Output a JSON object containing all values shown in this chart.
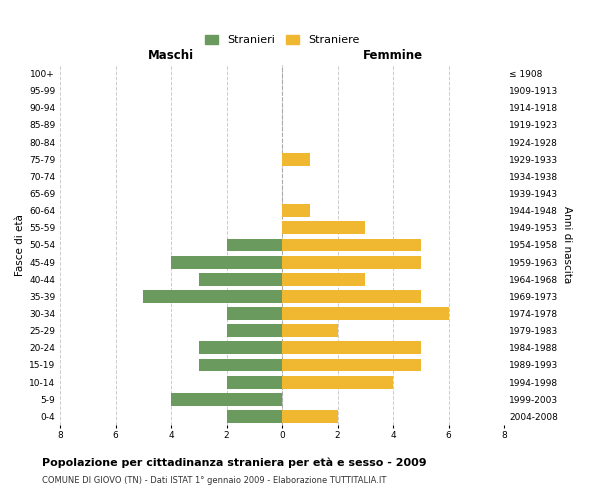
{
  "age_groups": [
    "0-4",
    "5-9",
    "10-14",
    "15-19",
    "20-24",
    "25-29",
    "30-34",
    "35-39",
    "40-44",
    "45-49",
    "50-54",
    "55-59",
    "60-64",
    "65-69",
    "70-74",
    "75-79",
    "80-84",
    "85-89",
    "90-94",
    "95-99",
    "100+"
  ],
  "birth_years": [
    "2004-2008",
    "1999-2003",
    "1994-1998",
    "1989-1993",
    "1984-1988",
    "1979-1983",
    "1974-1978",
    "1969-1973",
    "1964-1968",
    "1959-1963",
    "1954-1958",
    "1949-1953",
    "1944-1948",
    "1939-1943",
    "1934-1938",
    "1929-1933",
    "1924-1928",
    "1919-1923",
    "1914-1918",
    "1909-1913",
    "≤ 1908"
  ],
  "maschi": [
    2,
    4,
    2,
    3,
    3,
    2,
    2,
    5,
    3,
    4,
    2,
    0,
    0,
    0,
    0,
    0,
    0,
    0,
    0,
    0,
    0
  ],
  "femmine": [
    2,
    0,
    4,
    5,
    5,
    2,
    6,
    5,
    3,
    5,
    5,
    3,
    1,
    0,
    0,
    1,
    0,
    0,
    0,
    0,
    0
  ],
  "maschi_color": "#6b9a5e",
  "femmine_color": "#f0b830",
  "title": "Popolazione per cittadinanza straniera per età e sesso - 2009",
  "subtitle": "COMUNE DI GIOVO (TN) - Dati ISTAT 1° gennaio 2009 - Elaborazione TUTTITALIA.IT",
  "ylabel_left": "Fasce di età",
  "ylabel_right": "Anni di nascita",
  "xlabel_left": "Maschi",
  "xlabel_right": "Femmine",
  "xlim": 8,
  "legend_stranieri": "Stranieri",
  "legend_straniere": "Straniere",
  "bg_color": "#ffffff",
  "grid_color": "#cccccc",
  "bar_height": 0.75
}
